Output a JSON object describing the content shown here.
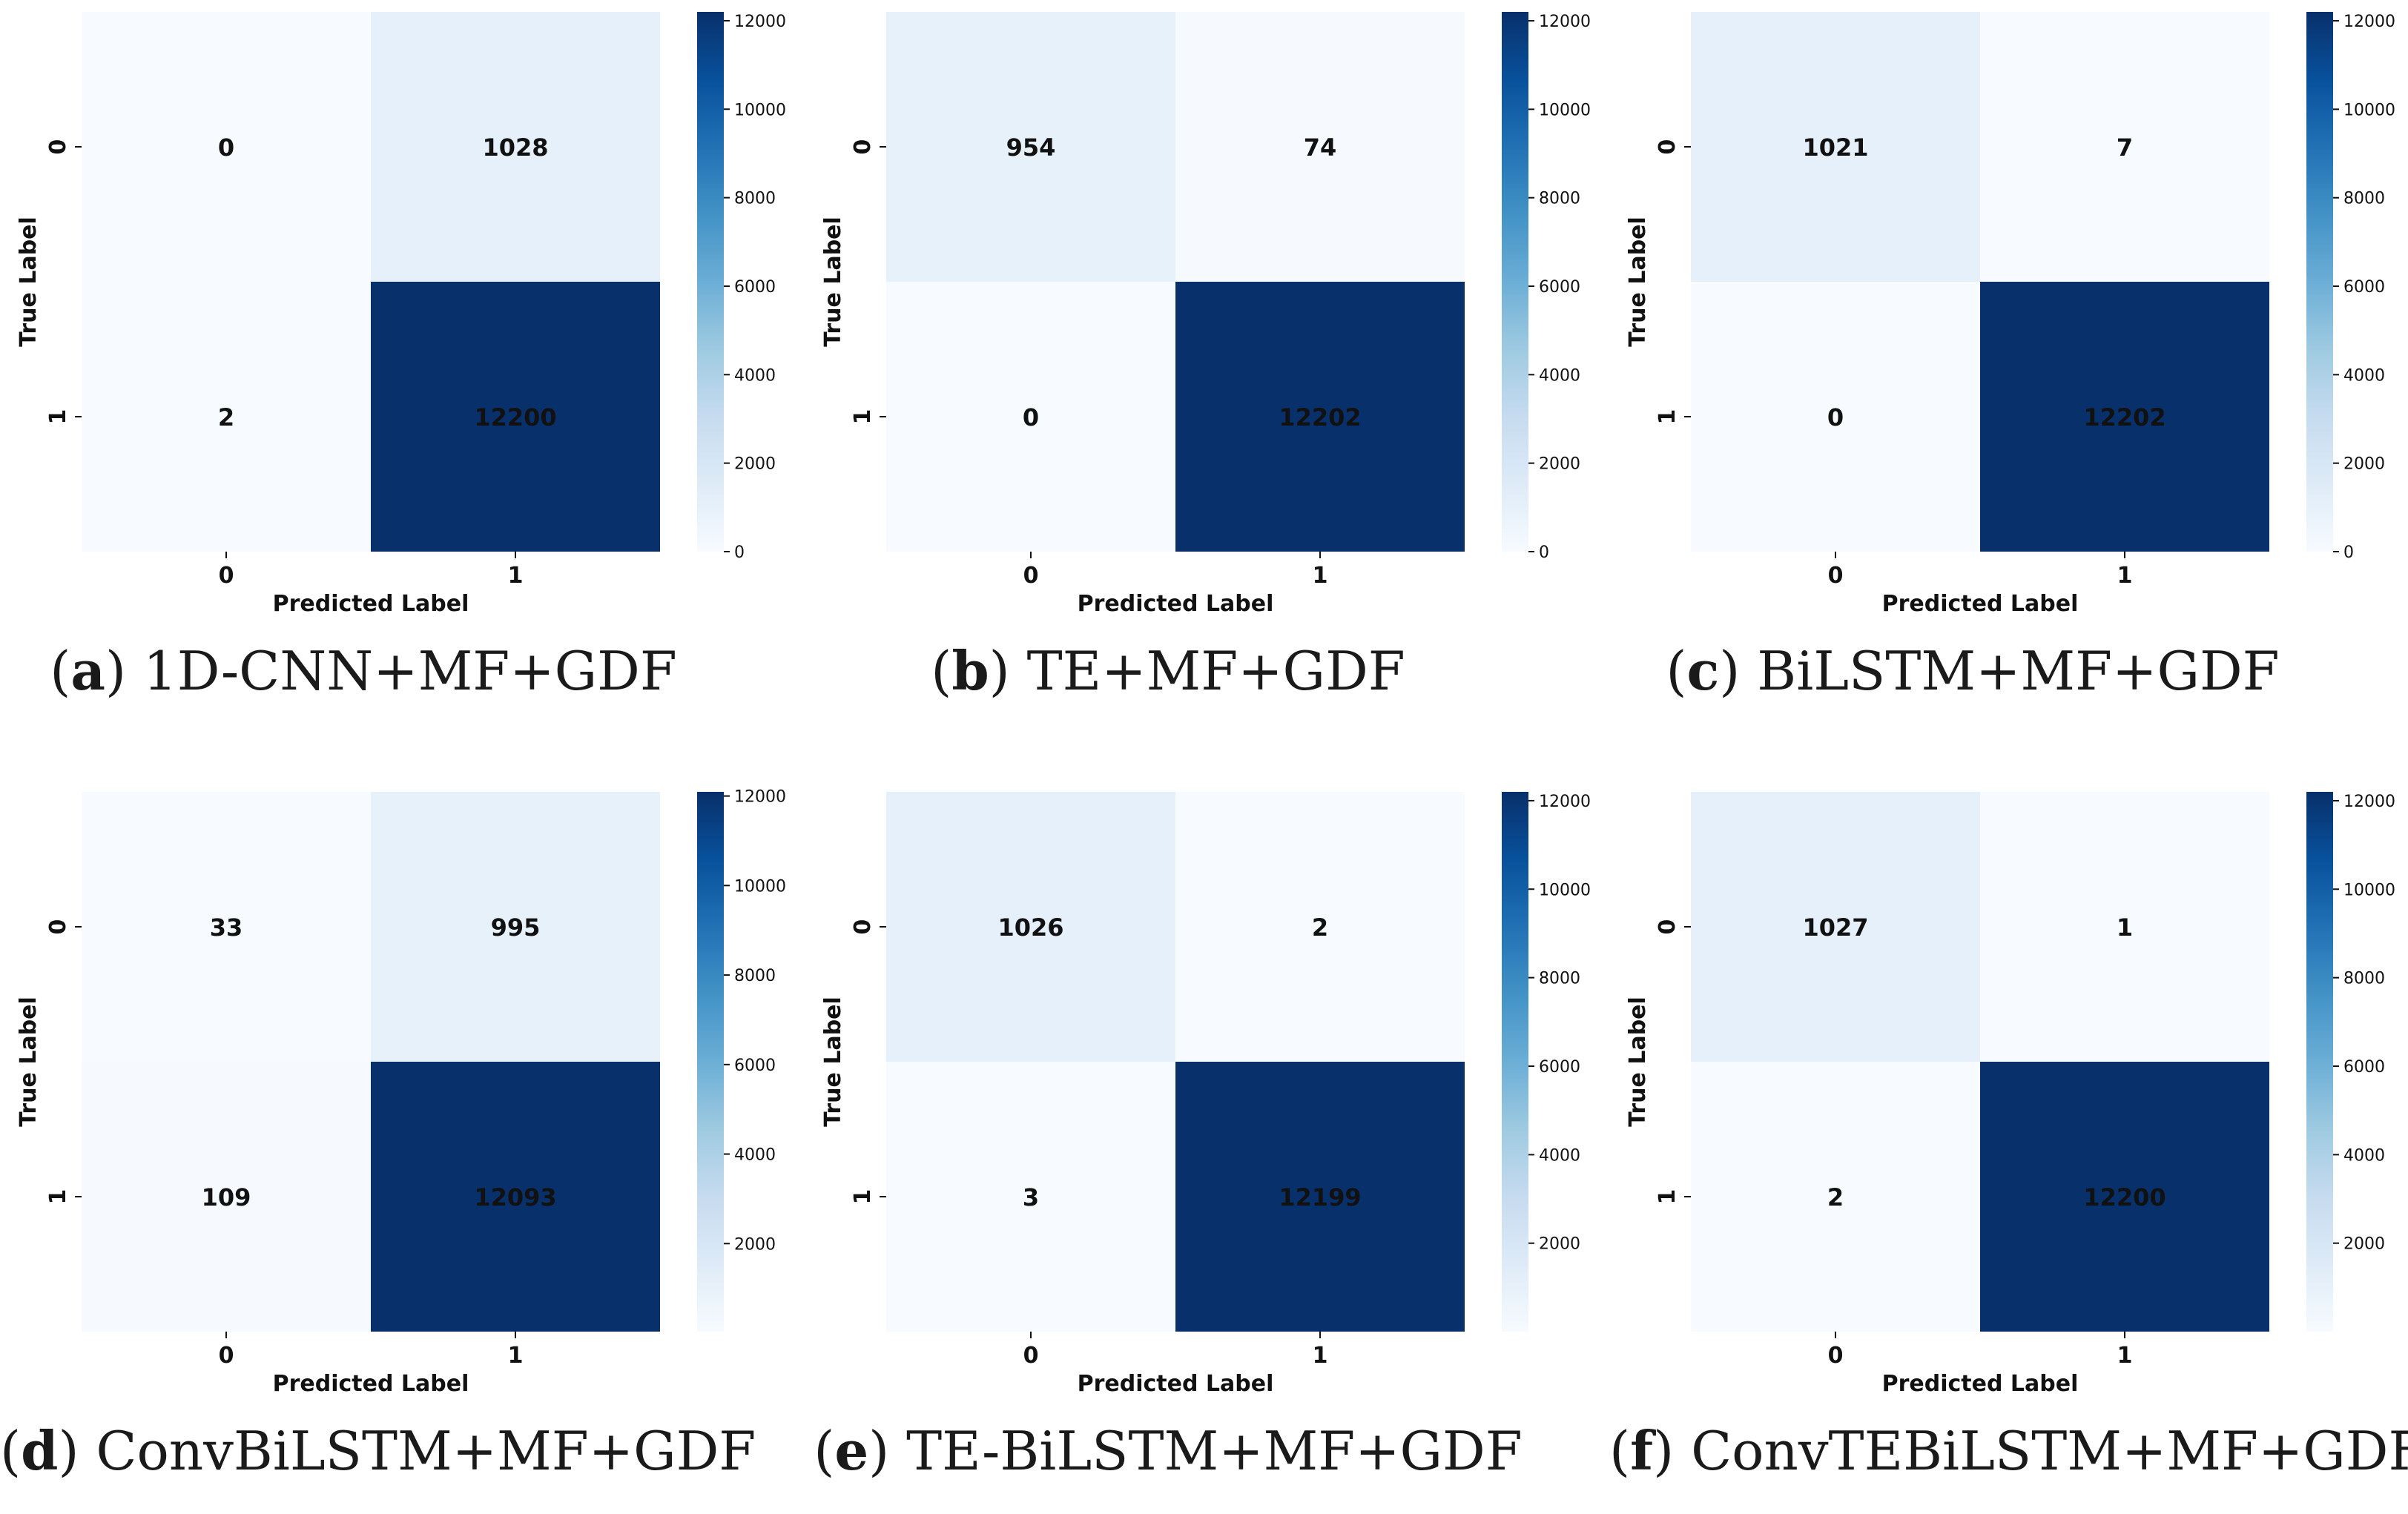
{
  "figure": {
    "colormap": "Blues",
    "cell_text_dark": "#1a1a1a",
    "cell_text_light": "#ffffff",
    "axis_label_x": "Predicted Label",
    "axis_label_y": "True Label",
    "tick_labels": [
      "0",
      "1"
    ]
  },
  "chart_data": [
    {
      "type": "heatmap",
      "letter": "a",
      "title": "1D-CNN+MF+GDF",
      "xlabel": "Predicted Label",
      "ylabel": "True Label",
      "x_categories": [
        "0",
        "1"
      ],
      "y_categories": [
        "0",
        "1"
      ],
      "values": [
        [
          0,
          1028
        ],
        [
          2,
          12200
        ]
      ],
      "colorbar": {
        "min": 0,
        "max": 12200,
        "ticks": [
          0,
          2000,
          4000,
          6000,
          8000,
          10000,
          12000
        ]
      }
    },
    {
      "type": "heatmap",
      "letter": "b",
      "title": "TE+MF+GDF",
      "xlabel": "Predicted Label",
      "ylabel": "True Label",
      "x_categories": [
        "0",
        "1"
      ],
      "y_categories": [
        "0",
        "1"
      ],
      "values": [
        [
          954,
          74
        ],
        [
          0,
          12202
        ]
      ],
      "colorbar": {
        "min": 0,
        "max": 12202,
        "ticks": [
          0,
          2000,
          4000,
          6000,
          8000,
          10000,
          12000
        ]
      }
    },
    {
      "type": "heatmap",
      "letter": "c",
      "title": "BiLSTM+MF+GDF",
      "xlabel": "Predicted Label",
      "ylabel": "True Label",
      "x_categories": [
        "0",
        "1"
      ],
      "y_categories": [
        "0",
        "1"
      ],
      "values": [
        [
          1021,
          7
        ],
        [
          0,
          12202
        ]
      ],
      "colorbar": {
        "min": 0,
        "max": 12202,
        "ticks": [
          0,
          2000,
          4000,
          6000,
          8000,
          10000,
          12000
        ]
      }
    },
    {
      "type": "heatmap",
      "letter": "d",
      "title": "ConvBiLSTM+MF+GDF",
      "xlabel": "Predicted Label",
      "ylabel": "True Label",
      "x_categories": [
        "0",
        "1"
      ],
      "y_categories": [
        "0",
        "1"
      ],
      "values": [
        [
          33,
          995
        ],
        [
          109,
          12093
        ]
      ],
      "colorbar": {
        "min": 33,
        "max": 12093,
        "ticks": [
          2000,
          4000,
          6000,
          8000,
          10000,
          12000
        ]
      }
    },
    {
      "type": "heatmap",
      "letter": "e",
      "title": "TE-BiLSTM+MF+GDF",
      "xlabel": "Predicted Label",
      "ylabel": "True Label",
      "x_categories": [
        "0",
        "1"
      ],
      "y_categories": [
        "0",
        "1"
      ],
      "values": [
        [
          1026,
          2
        ],
        [
          3,
          12199
        ]
      ],
      "colorbar": {
        "min": 2,
        "max": 12199,
        "ticks": [
          2000,
          4000,
          6000,
          8000,
          10000,
          12000
        ]
      }
    },
    {
      "type": "heatmap",
      "letter": "f",
      "title": "ConvTEBiLSTM+MF+GDF",
      "xlabel": "Predicted Label",
      "ylabel": "True Label",
      "x_categories": [
        "0",
        "1"
      ],
      "y_categories": [
        "0",
        "1"
      ],
      "values": [
        [
          1027,
          1
        ],
        [
          2,
          12200
        ]
      ],
      "colorbar": {
        "min": 1,
        "max": 12200,
        "ticks": [
          2000,
          4000,
          6000,
          8000,
          10000,
          12000
        ]
      }
    }
  ]
}
